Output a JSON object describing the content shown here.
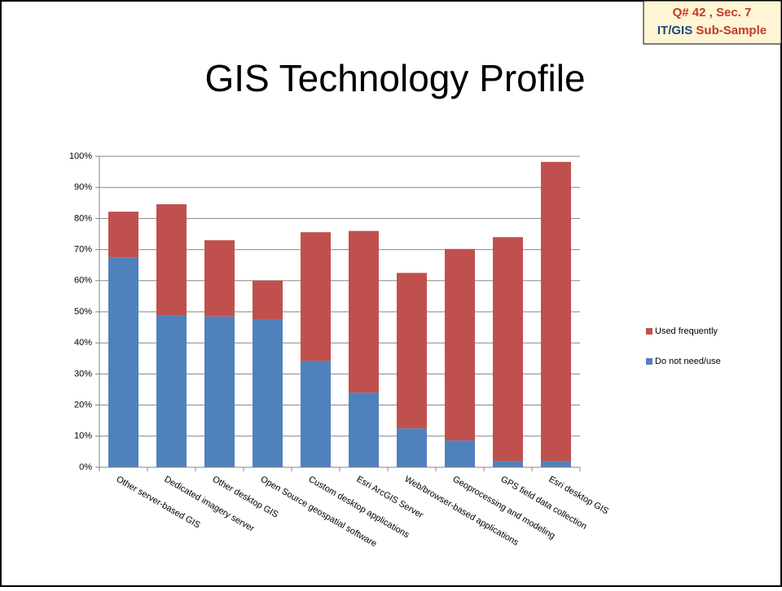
{
  "header": {
    "badge_line1": "Q# 42 , Sec. 7",
    "badge_line2a": "IT/GIS",
    "badge_line2b": "Sub-Sample"
  },
  "chart_data": {
    "type": "stacked_bar",
    "title": "GIS Technology Profile",
    "categories": [
      "Other server-based GIS",
      "Dedicated imagery server",
      "Other desktop GIS",
      "Open Source geospatial software",
      "Custom desktop applications",
      "Esri ArcGIS Server",
      "Web/browser-based applications",
      "Geoprocessing and modeling",
      "GPS field data collection",
      "Esri desktop GIS"
    ],
    "series": [
      {
        "name": "Do not need/use",
        "color": "#4f81bd",
        "values": [
          67.5,
          48.8,
          48.5,
          47.5,
          34.2,
          24,
          12.5,
          8.6,
          2,
          2
        ]
      },
      {
        "name": "Used frequently",
        "color": "#c0504d",
        "values": [
          14.7,
          35.8,
          24.5,
          12.5,
          41.4,
          52,
          50,
          61.6,
          72,
          96.2
        ]
      }
    ],
    "ylim": [
      0,
      100
    ],
    "yticks": [
      {
        "value": 0,
        "label": "0%"
      },
      {
        "value": 10,
        "label": "10%"
      },
      {
        "value": 20,
        "label": "20%"
      },
      {
        "value": 30,
        "label": "30%"
      },
      {
        "value": 40,
        "label": "40%"
      },
      {
        "value": 50,
        "label": "50%"
      },
      {
        "value": 60,
        "label": "60%"
      },
      {
        "value": 70,
        "label": "70%"
      },
      {
        "value": 80,
        "label": "80%"
      },
      {
        "value": 90,
        "label": "90%"
      },
      {
        "value": 100,
        "label": "100%"
      }
    ],
    "grid": true,
    "legend": "right"
  }
}
